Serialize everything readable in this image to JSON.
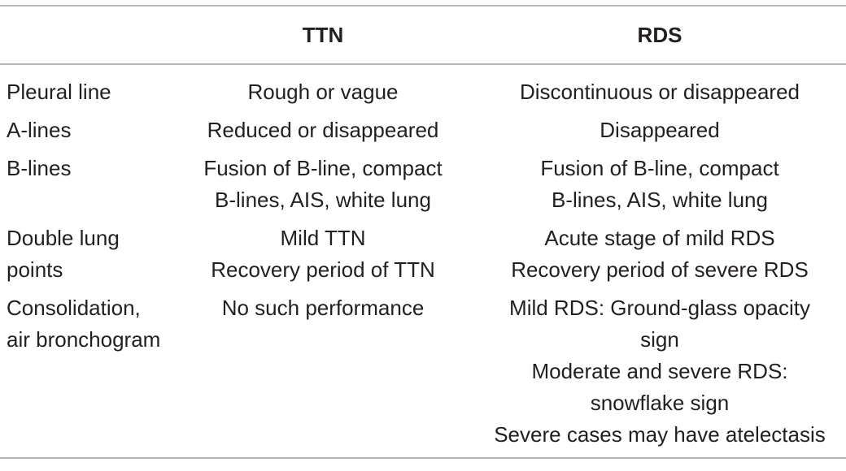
{
  "table": {
    "headers": [
      "",
      "TTN",
      "RDS"
    ],
    "rows": [
      {
        "label": "Pleural line",
        "ttn": [
          "Rough or vague"
        ],
        "rds": [
          "Discontinuous or disappeared"
        ]
      },
      {
        "label": "A-lines",
        "ttn": [
          "Reduced or disappeared"
        ],
        "rds": [
          "Disappeared"
        ]
      },
      {
        "label": "B-lines",
        "ttn": [
          "Fusion of B-line, compact",
          "B-lines, AIS, white lung"
        ],
        "rds": [
          "Fusion of B-line, compact",
          "B-lines, AIS, white lung"
        ]
      },
      {
        "label": "Double lung points",
        "ttn": [
          "Mild TTN",
          "Recovery period of TTN"
        ],
        "rds": [
          "Acute stage of mild RDS",
          "Recovery period of severe RDS"
        ]
      },
      {
        "label": "Consolidation, air bronchogram",
        "ttn": [
          "No such performance"
        ],
        "rds": [
          "Mild RDS: Ground-glass opacity",
          "sign",
          "Moderate and severe RDS:",
          "snowflake sign",
          "Severe cases may have atelectasis"
        ]
      }
    ]
  }
}
